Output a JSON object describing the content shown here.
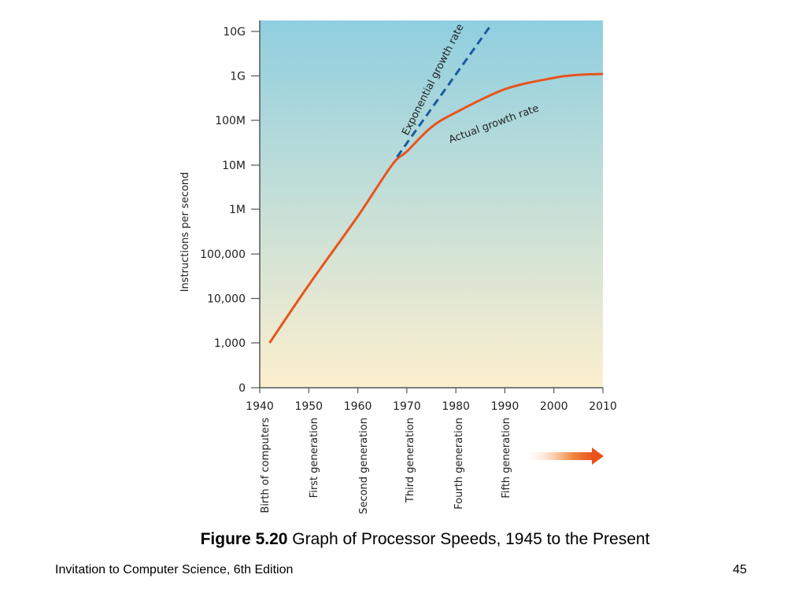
{
  "chart_data": {
    "type": "line",
    "title": "",
    "xlabel": "",
    "ylabel": "Instructions per second",
    "x_ticks": [
      "1940",
      "1950",
      "1960",
      "1970",
      "1980",
      "1990",
      "2000",
      "2010"
    ],
    "y_ticks": [
      "0",
      "1,000",
      "10,000",
      "100,000",
      "1M",
      "10M",
      "100M",
      "1G",
      "10G"
    ],
    "xlim": [
      1940,
      2010
    ],
    "y_scale": "log",
    "background_gradient": [
      "#8fcfe0",
      "#fcefce"
    ],
    "generations": [
      "Birth of computers",
      "First generation",
      "Second generation",
      "Third generation",
      "Fourth generation",
      "Fifth generation"
    ],
    "series": [
      {
        "name": "Actual growth rate",
        "color": "#e8541c",
        "style": "solid",
        "x": [
          1942,
          1950,
          1960,
          1967,
          1970,
          1975,
          1980,
          1990,
          2000,
          2005,
          2010
        ],
        "y": [
          1000,
          20000,
          700000,
          10000000,
          20000000,
          70000000,
          150000000,
          500000000,
          900000000,
          1050000000,
          1100000000
        ]
      },
      {
        "name": "Exponential growth rate",
        "color": "#1b5aa0",
        "style": "dashed",
        "x": [
          1968,
          1987
        ],
        "y": [
          15000000,
          13000000000
        ]
      }
    ]
  },
  "caption": {
    "figure_label": "Figure 5.20",
    "figure_text": " Graph of Processor Speeds, 1945 to the Present"
  },
  "footer": {
    "book": "Invitation to Computer Science, 6th Edition",
    "page": "45"
  }
}
